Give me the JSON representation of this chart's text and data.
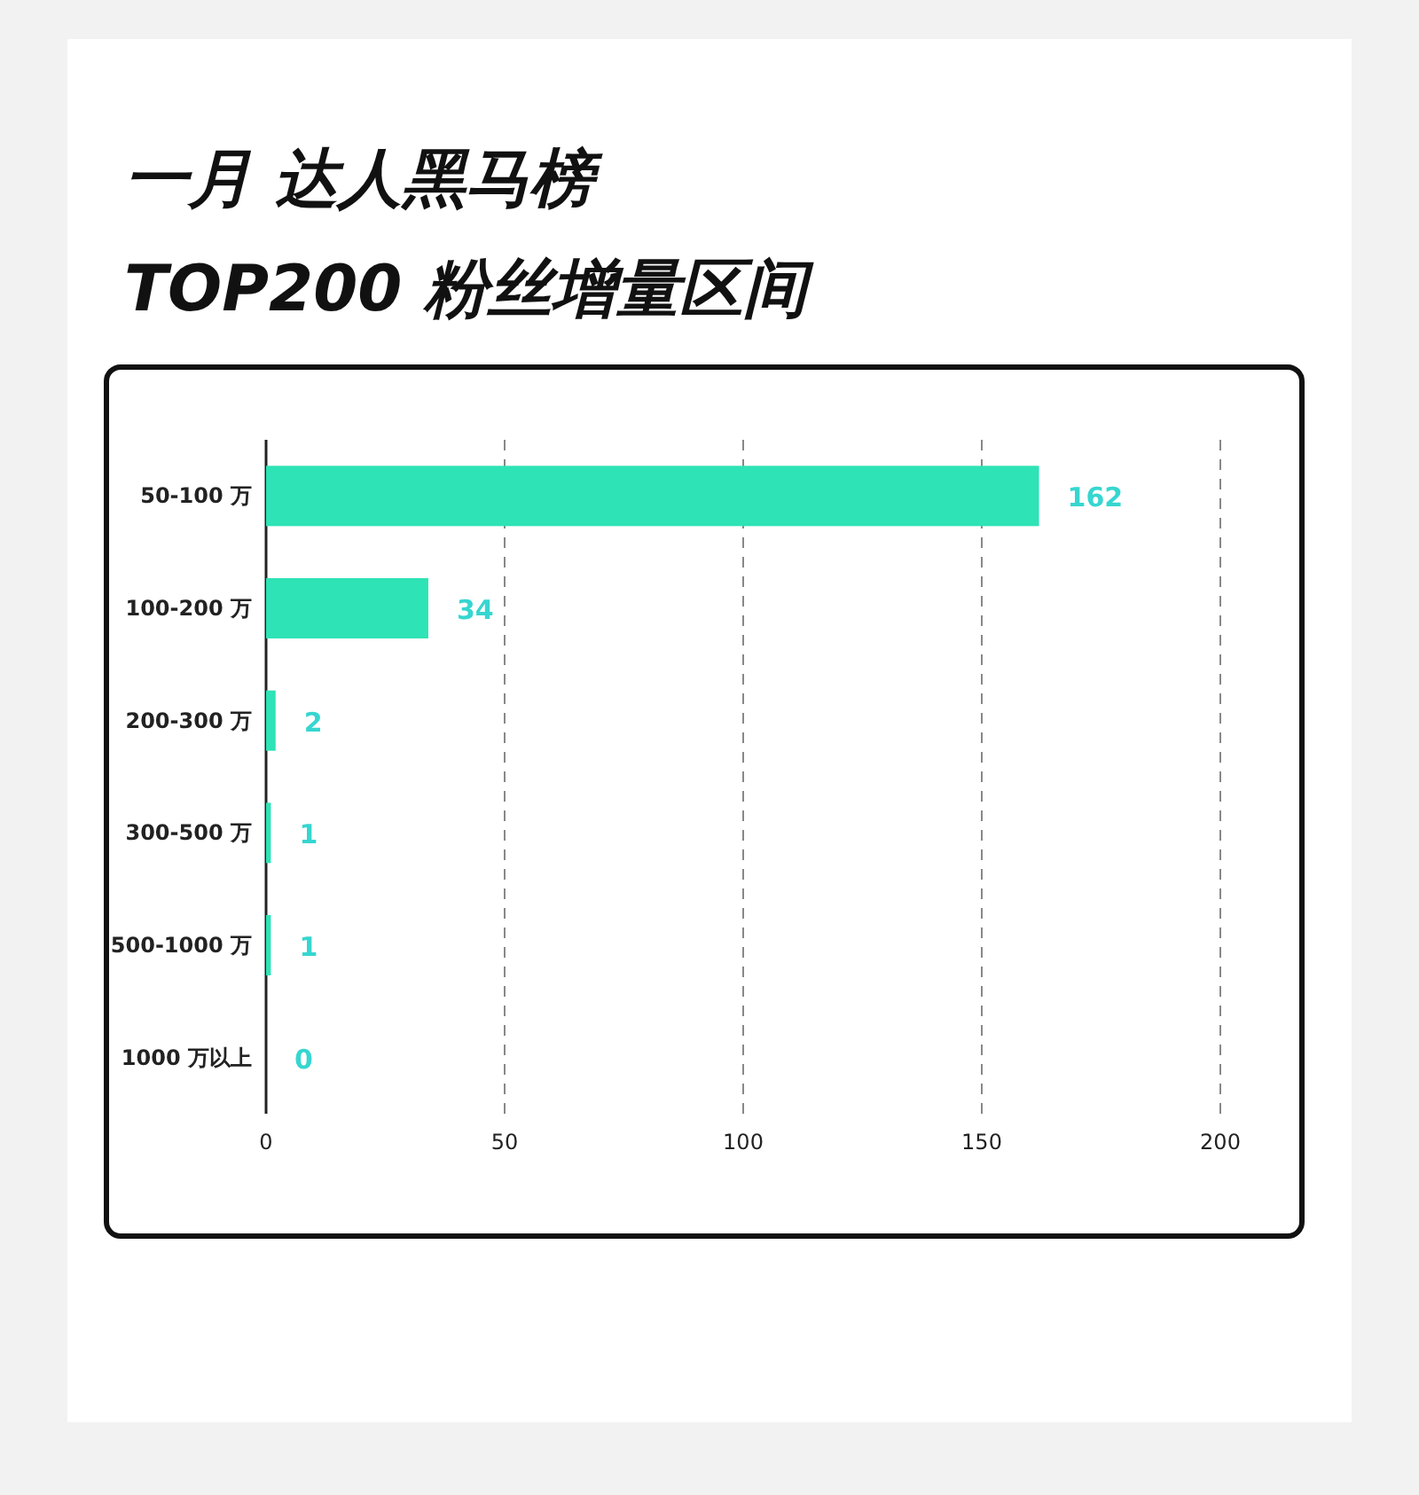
{
  "chart_data": {
    "type": "bar",
    "orientation": "horizontal",
    "title": "一月 达人黑马榜",
    "subtitle": "TOP200 粉丝增量区间",
    "categories": [
      "50-100 万",
      "100-200 万",
      "200-300 万",
      "300-500 万",
      "500-1000 万",
      "1000 万以上"
    ],
    "values": [
      162,
      34,
      2,
      1,
      1,
      0
    ],
    "color": "#2ee3b5",
    "xlim": [
      0,
      200
    ],
    "xticks": [
      0,
      50,
      100,
      150,
      200
    ],
    "grid": "x",
    "data_labels": true
  }
}
